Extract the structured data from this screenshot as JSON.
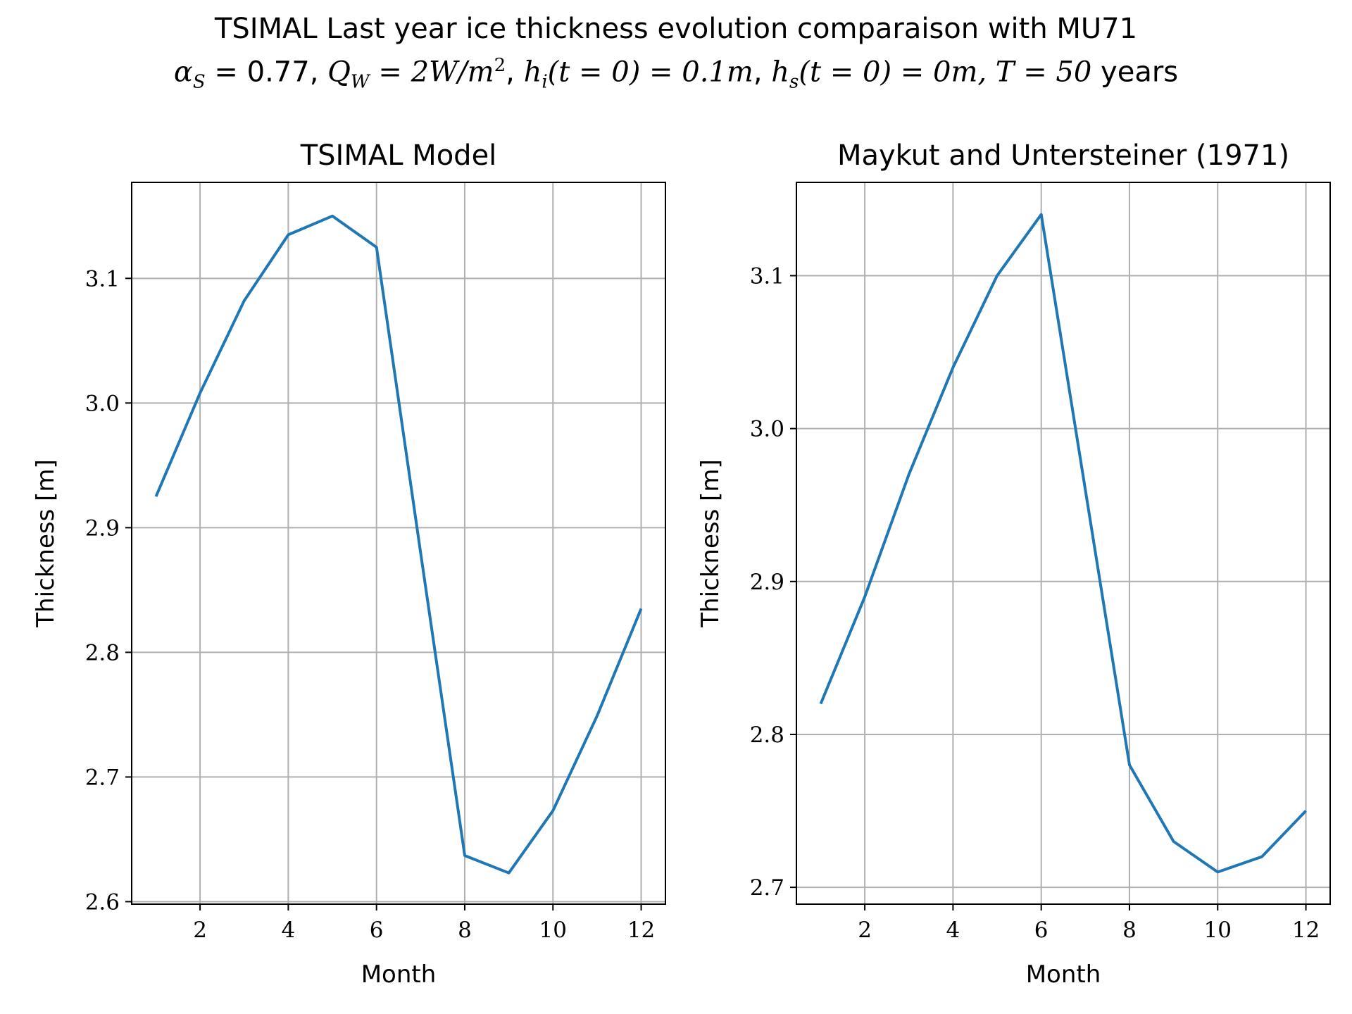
{
  "suptitle": {
    "line1": "TSIMAL Last year ice thickness evolution comparaison with MU71",
    "line2": {
      "alpha_sym": "α",
      "alpha_sub": "S",
      "alpha_eq": " = 0.77, ",
      "q_sym": "Q",
      "q_sub": "W",
      "q_eq": " = 2W/m",
      "q_sup": "2",
      "q_sep": ", ",
      "hi_sym": "h",
      "hi_sub": "i",
      "hi_eq": "(t = 0) = 0.1m",
      "hi_sep": ", ",
      "hs_sym": "h",
      "hs_sub": "s",
      "hs_eq": "(t = 0) = 0m, T = 50",
      "years": " years"
    }
  },
  "colors": {
    "line": "#1f77b4",
    "grid": "#b0b0b0",
    "axes": "#000000"
  },
  "chart_data": [
    {
      "type": "line",
      "title": "TSIMAL Model",
      "xlabel": "Month",
      "ylabel": "Thickness [m]",
      "xlim": [
        0.45,
        12.55
      ],
      "ylim": [
        2.598,
        3.177
      ],
      "xticks": [
        2,
        4,
        6,
        8,
        10,
        12
      ],
      "yticks": [
        2.6,
        2.7,
        2.8,
        2.9,
        3.0,
        3.1
      ],
      "ytick_labels": [
        "2.6",
        "2.7",
        "2.8",
        "2.9",
        "3.0",
        "3.1"
      ],
      "grid": true,
      "x": [
        1,
        2,
        3,
        4,
        5,
        6,
        7,
        8,
        9,
        10,
        11,
        12
      ],
      "y": [
        2.925,
        3.008,
        3.082,
        3.135,
        3.15,
        3.125,
        2.88,
        2.637,
        2.623,
        2.673,
        2.749,
        2.835
      ]
    },
    {
      "type": "line",
      "title": "Maykut and Untersteiner (1971)",
      "xlabel": "Month",
      "ylabel": "Thickness [m]",
      "xlim": [
        0.45,
        12.55
      ],
      "ylim": [
        2.689,
        3.161
      ],
      "xticks": [
        2,
        4,
        6,
        8,
        10,
        12
      ],
      "yticks": [
        2.7,
        2.8,
        2.9,
        3.0,
        3.1
      ],
      "ytick_labels": [
        "2.7",
        "2.8",
        "2.9",
        "3.0",
        "3.1"
      ],
      "grid": true,
      "x": [
        1,
        2,
        3,
        4,
        5,
        6,
        7,
        8,
        9,
        10,
        11,
        12
      ],
      "y": [
        2.82,
        2.89,
        2.97,
        3.04,
        3.1,
        3.14,
        2.96,
        2.78,
        2.73,
        2.71,
        2.72,
        2.75
      ]
    }
  ]
}
